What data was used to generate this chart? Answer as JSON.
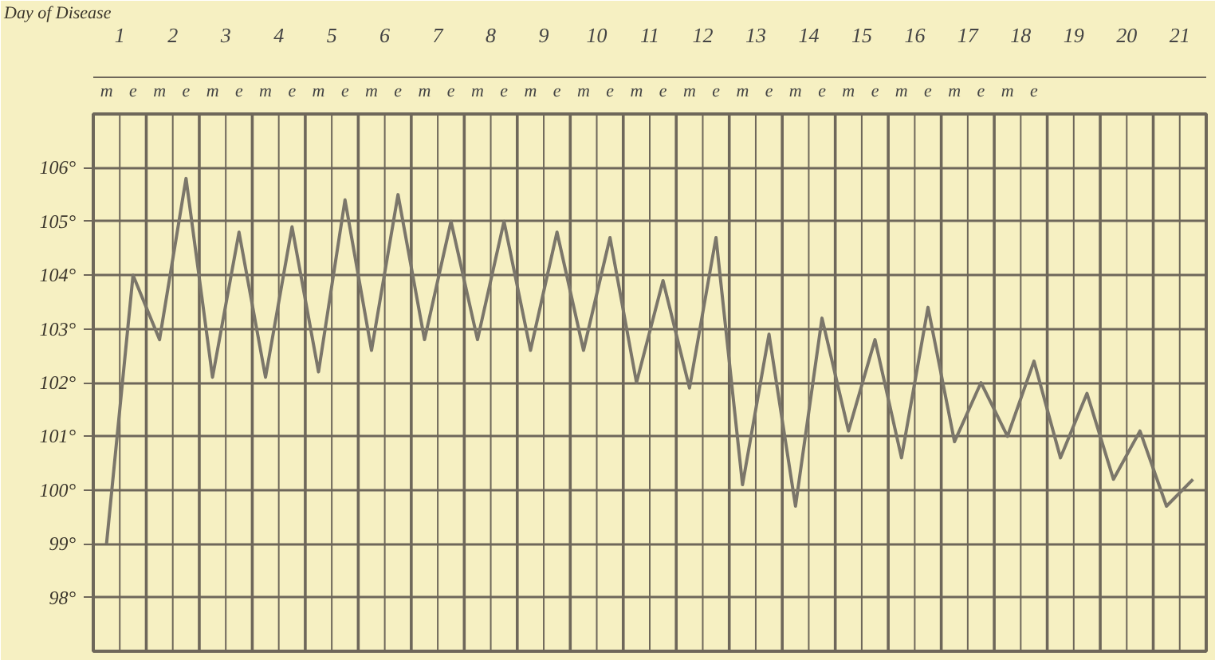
{
  "chart_data": {
    "type": "line",
    "xlabel": "Day of Disease",
    "categories": [
      "m",
      "e",
      "m",
      "e",
      "m",
      "e",
      "m",
      "e",
      "m",
      "e",
      "m",
      "e",
      "m",
      "e",
      "m",
      "e",
      "m",
      "e",
      "m",
      "e",
      "m",
      "e",
      "m",
      "e",
      "m",
      "e",
      "m",
      "e",
      "m",
      "e",
      "m",
      "e",
      "m",
      "e",
      "m",
      "e",
      null,
      null,
      null,
      null,
      null,
      null
    ],
    "series": [
      {
        "color": "#7b766a",
        "values": [
          99.0,
          104.0,
          102.8,
          105.8,
          102.1,
          104.8,
          102.1,
          104.9,
          102.2,
          105.4,
          102.6,
          105.5,
          102.8,
          105.0,
          102.8,
          105.0,
          102.6,
          104.8,
          102.6,
          104.7,
          102.0,
          103.9,
          101.9,
          104.7,
          100.1,
          102.9,
          99.7,
          103.2,
          101.1,
          102.8,
          100.6,
          103.4,
          100.9,
          102.0,
          101.0,
          102.4,
          100.6,
          101.8,
          100.2,
          101.1,
          99.7,
          100.2
        ]
      }
    ],
    "ylim": [
      97,
      107
    ],
    "yticks": [
      {
        "value": 98,
        "label": "98°"
      },
      {
        "value": 99,
        "label": "99°"
      },
      {
        "value": 100,
        "label": "100°"
      },
      {
        "value": 101,
        "label": "101°"
      },
      {
        "value": 102,
        "label": "102°"
      },
      {
        "value": 103,
        "label": "103°"
      },
      {
        "value": 104,
        "label": "104°"
      },
      {
        "value": 105,
        "label": "105°"
      },
      {
        "value": 106,
        "label": "106°"
      }
    ],
    "x2lim": [
      0.5,
      21.5
    ],
    "x2ticks": [
      1,
      2,
      3,
      4,
      5,
      6,
      7,
      8,
      9,
      10,
      11,
      12,
      13,
      14,
      15,
      16,
      17,
      18,
      19,
      20,
      21
    ],
    "grid": true,
    "marker": "none",
    "line_style": "solid"
  }
}
